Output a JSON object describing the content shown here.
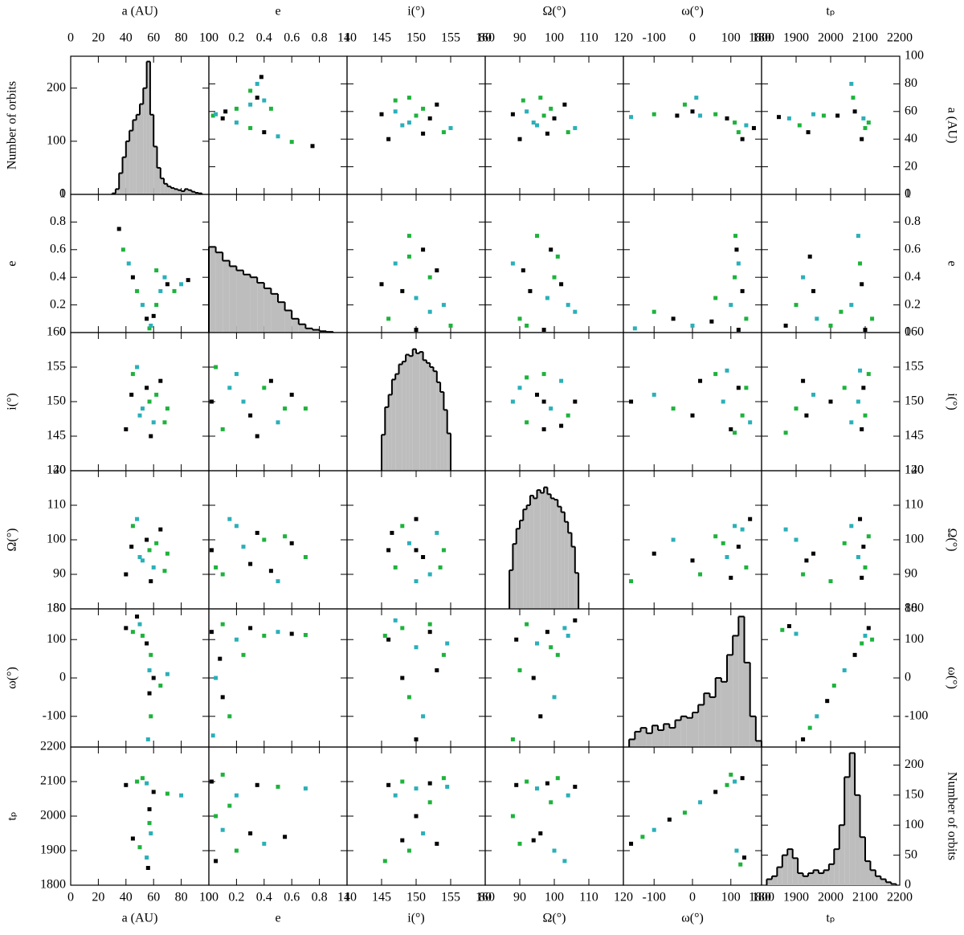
{
  "chart_data": {
    "type": "corner",
    "count_label": "Number of orbits",
    "point_colors": [
      "#000000",
      "#1db33c",
      "#2ab0b8"
    ],
    "hist_fill": "#bdbdbd",
    "variables": [
      {
        "label": "a (AU)",
        "lim": [
          0,
          100
        ],
        "ticks": [
          0,
          20,
          40,
          60,
          80,
          100
        ],
        "bins": [
          30,
          32.5,
          35,
          37.5,
          40,
          42.5,
          45,
          47.5,
          50,
          52.5,
          55,
          57.5,
          60,
          62.5,
          65,
          67.5,
          70,
          72.5,
          75,
          77.5,
          80,
          82.5,
          85,
          87.5,
          90,
          92.5,
          95
        ],
        "counts": [
          2,
          10,
          40,
          70,
          100,
          120,
          140,
          150,
          170,
          200,
          250,
          150,
          90,
          50,
          30,
          20,
          15,
          12,
          10,
          8,
          6,
          10,
          8,
          5,
          3,
          2
        ],
        "count_lim": [
          0,
          260
        ],
        "count_ticks": [
          0,
          100,
          200
        ]
      },
      {
        "label": "e",
        "lim": [
          0,
          1
        ],
        "ticks": [
          0,
          0.2,
          0.4,
          0.6,
          0.8,
          1
        ],
        "bins": [
          0,
          0.05,
          0.1,
          0.15,
          0.2,
          0.25,
          0.3,
          0.35,
          0.4,
          0.45,
          0.5,
          0.55,
          0.6,
          0.65,
          0.7,
          0.75,
          0.8,
          0.85,
          0.9
        ],
        "counts": [
          62,
          58,
          52,
          48,
          45,
          42,
          40,
          36,
          32,
          28,
          22,
          16,
          10,
          6,
          3,
          2,
          1,
          0.5
        ],
        "count_lim": [
          0,
          100
        ]
      },
      {
        "label": "i(°)",
        "lim": [
          140,
          160
        ],
        "ticks": [
          140,
          145,
          150,
          155,
          160
        ],
        "bins": [
          145,
          145.5,
          146,
          146.5,
          147,
          147.5,
          148,
          148.5,
          149,
          149.5,
          150,
          150.5,
          151,
          151.5,
          152,
          152.5,
          153,
          153.5,
          154,
          154.5,
          155
        ],
        "counts": [
          26,
          46,
          55,
          66,
          70,
          77,
          79,
          84,
          83,
          88,
          85,
          86,
          80,
          78,
          75,
          72,
          64,
          57,
          44,
          27
        ],
        "count_lim": [
          0,
          100
        ]
      },
      {
        "label": "Ω(°)",
        "lim": [
          80,
          120
        ],
        "ticks": [
          80,
          90,
          100,
          110,
          120
        ],
        "bins": [
          87,
          88,
          89,
          90,
          91,
          92,
          93,
          94,
          95,
          96,
          97,
          98,
          99,
          100,
          101,
          102,
          103,
          104,
          105,
          106,
          107
        ],
        "counts": [
          28,
          47,
          58,
          64,
          72,
          75,
          82,
          80,
          86,
          84,
          88,
          83,
          80,
          79,
          74,
          70,
          63,
          55,
          45,
          26
        ],
        "count_lim": [
          0,
          100
        ]
      },
      {
        "label": "ω(°)",
        "lim": [
          -180,
          180
        ],
        "ticks": [
          -100,
          0,
          100,
          180
        ],
        "bins": [
          -165,
          -150,
          -135,
          -120,
          -105,
          -90,
          -75,
          -60,
          -45,
          -30,
          -15,
          0,
          15,
          30,
          45,
          60,
          75,
          90,
          105,
          120,
          135,
          150,
          165,
          180
        ],
        "counts": [
          10,
          20,
          25,
          18,
          28,
          22,
          30,
          25,
          35,
          40,
          38,
          45,
          55,
          70,
          65,
          90,
          85,
          120,
          145,
          170,
          110,
          40,
          8
        ],
        "count_lim": [
          0,
          180
        ]
      },
      {
        "label": "tₚ",
        "lim": [
          1800,
          2200
        ],
        "ticks": [
          1800,
          1900,
          2000,
          2100,
          2200
        ],
        "bins": [
          1815,
          1830,
          1845,
          1860,
          1875,
          1890,
          1905,
          1920,
          1935,
          1950,
          1965,
          1980,
          1995,
          2010,
          2025,
          2040,
          2055,
          2070,
          2085,
          2100,
          2115,
          2130,
          2145,
          2160,
          2175,
          2190
        ],
        "counts": [
          10,
          15,
          30,
          50,
          60,
          45,
          20,
          15,
          20,
          25,
          20,
          25,
          35,
          60,
          100,
          180,
          220,
          150,
          80,
          40,
          25,
          15,
          10,
          5,
          2
        ],
        "count_lim": [
          0,
          230
        ],
        "count_ticks": [
          0,
          50,
          100,
          150,
          200
        ]
      }
    ],
    "pairs": [
      {
        "x": [
          35,
          38,
          42,
          45,
          48,
          52,
          55,
          57,
          58,
          60,
          62,
          65,
          70,
          75,
          80,
          85,
          62,
          68
        ],
        "y": [
          0.75,
          0.6,
          0.5,
          0.4,
          0.3,
          0.2,
          0.1,
          0.03,
          0.05,
          0.12,
          0.2,
          0.3,
          0.35,
          0.3,
          0.35,
          0.38,
          0.45,
          0.4
        ]
      },
      {
        "x": [
          40,
          45,
          50,
          55,
          57,
          60,
          65,
          70,
          48,
          58,
          62,
          52,
          44,
          68
        ],
        "y": [
          146,
          154,
          148,
          152,
          150,
          147,
          153,
          149,
          155,
          145,
          151,
          149,
          151,
          147
        ]
      },
      {
        "x": [
          40,
          45,
          50,
          55,
          57,
          60,
          65,
          70,
          48,
          58,
          62,
          52,
          44,
          68
        ],
        "y": [
          90,
          104,
          95,
          100,
          97,
          92,
          103,
          96,
          106,
          88,
          99,
          94,
          98,
          91
        ]
      },
      {
        "x": [
          40,
          45,
          50,
          55,
          58,
          57,
          57,
          58,
          56,
          60,
          65,
          70,
          48,
          52
        ],
        "y": [
          130,
          120,
          140,
          90,
          60,
          20,
          -40,
          -100,
          -160,
          0,
          -20,
          10,
          160,
          110
        ]
      },
      {
        "x": [
          40,
          48,
          55,
          60,
          70,
          80,
          57,
          57,
          58,
          45,
          50,
          55,
          56,
          52
        ],
        "y": [
          2090,
          2100,
          2095,
          2070,
          2065,
          2060,
          2020,
          1980,
          1950,
          1935,
          1910,
          1880,
          1850,
          2110
        ]
      },
      {
        "x": [
          0.02,
          0.1,
          0.2,
          0.3,
          0.4,
          0.5,
          0.6,
          0.7,
          0.15,
          0.35,
          0.05,
          0.25,
          0.45,
          0.55
        ],
        "y": [
          150,
          146,
          154,
          148,
          152,
          147,
          151,
          149,
          152,
          145,
          155,
          150,
          153,
          149
        ]
      },
      {
        "x": [
          0.02,
          0.1,
          0.2,
          0.3,
          0.4,
          0.5,
          0.6,
          0.7,
          0.15,
          0.35,
          0.05,
          0.25,
          0.45,
          0.55
        ],
        "y": [
          97,
          90,
          104,
          93,
          100,
          88,
          99,
          95,
          106,
          102,
          92,
          98,
          91,
          101
        ]
      },
      {
        "x": [
          0.02,
          0.1,
          0.2,
          0.3,
          0.4,
          0.5,
          0.6,
          0.7,
          0.05,
          0.1,
          0.15,
          0.03,
          0.08,
          0.25
        ],
        "y": [
          120,
          140,
          100,
          130,
          110,
          120,
          115,
          112,
          0,
          -50,
          -100,
          -150,
          50,
          60
        ]
      },
      {
        "x": [
          0.02,
          0.1,
          0.2,
          0.35,
          0.5,
          0.7,
          0.05,
          0.2,
          0.4,
          0.55,
          0.05,
          0.1,
          0.3,
          0.15
        ],
        "y": [
          2100,
          2120,
          2060,
          2090,
          2085,
          2080,
          1870,
          1900,
          1920,
          1940,
          2000,
          1960,
          1950,
          2030
        ]
      },
      {
        "x": [
          150,
          147,
          153,
          146,
          154,
          150,
          150,
          148,
          152,
          146.5,
          153.5,
          149,
          151
        ],
        "y": [
          97,
          92,
          102,
          97,
          97,
          88,
          106,
          104,
          90,
          102,
          92,
          99,
          95
        ]
      },
      {
        "x": [
          146,
          148,
          150,
          152,
          154,
          147,
          153,
          149,
          151,
          150,
          145.5,
          154.5,
          148,
          152
        ],
        "y": [
          100,
          130,
          80,
          120,
          60,
          150,
          20,
          -50,
          -100,
          -160,
          110,
          90,
          0,
          140
        ]
      },
      {
        "x": [
          146,
          148,
          150,
          152,
          154,
          147,
          153,
          149,
          151,
          150,
          145.5,
          154.5,
          148,
          152
        ],
        "y": [
          2090,
          2100,
          2080,
          2095,
          2110,
          2060,
          1920,
          1900,
          1950,
          2000,
          1870,
          2085,
          1930,
          2040
        ]
      },
      {
        "x": [
          89,
          92,
          95,
          98,
          101,
          104,
          106,
          90,
          100,
          96,
          88,
          103,
          94,
          99
        ],
        "y": [
          100,
          140,
          90,
          120,
          60,
          110,
          150,
          20,
          -50,
          -100,
          -160,
          130,
          0,
          80
        ]
      },
      {
        "x": [
          89,
          92,
          95,
          98,
          101,
          104,
          106,
          90,
          100,
          96,
          88,
          103,
          94,
          99
        ],
        "y": [
          2090,
          2100,
          2080,
          2095,
          2110,
          2060,
          2085,
          1920,
          1900,
          1950,
          2000,
          1870,
          1930,
          2040
        ]
      },
      {
        "x": [
          -160,
          -130,
          -100,
          -60,
          -20,
          20,
          60,
          90,
          110,
          130,
          100,
          115,
          135,
          125
        ],
        "y": [
          1920,
          1940,
          1960,
          1990,
          2010,
          2040,
          2070,
          2090,
          2100,
          2110,
          2120,
          1900,
          1880,
          1860
        ]
      }
    ]
  }
}
